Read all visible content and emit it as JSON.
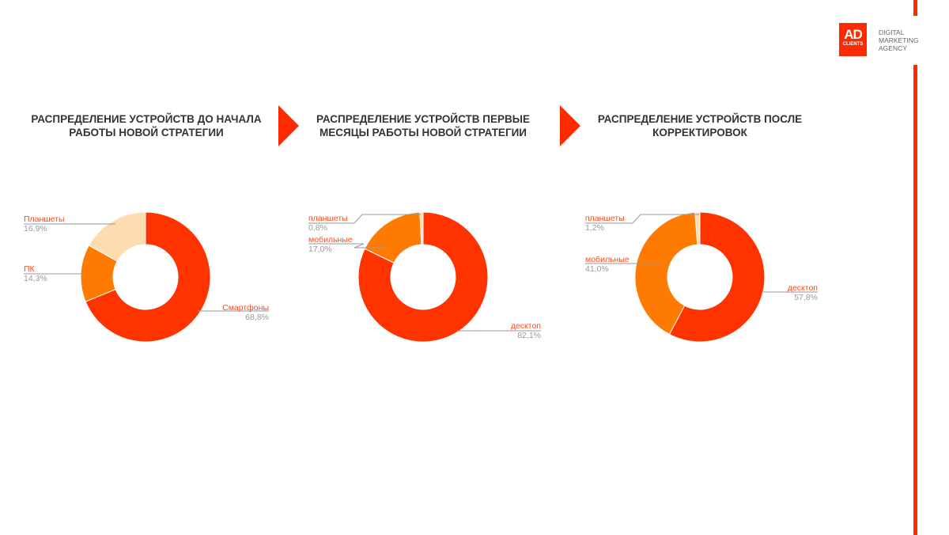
{
  "logo": {
    "mark_top": "AD",
    "mark_bottom": "CLIENTS",
    "text_lines": [
      "DIGITAL",
      "MARKETING",
      "AGENCY"
    ]
  },
  "colors": {
    "accent": "#ff2a00",
    "primary_slice": "#ff3300",
    "secondary_slice": "#ff7a00",
    "tertiary_slice": "#fddcb0"
  },
  "chart_data": [
    {
      "type": "pie",
      "donut": true,
      "title": "РАСПРЕДЕЛЕНИЕ УСТРОЙСТВ ДО НАЧАЛА РАБОТЫ НОВОЙ СТРАТЕГИИ",
      "slices": [
        {
          "label": "Смартфоны",
          "value": 68.8,
          "display": "68,8%",
          "color": "#ff3300"
        },
        {
          "label": "ПК",
          "value": 14.3,
          "display": "14,3%",
          "color": "#ff7a00"
        },
        {
          "label": "Планшеты",
          "value": 16.9,
          "display": "16,9%",
          "color": "#fddcb0"
        }
      ]
    },
    {
      "type": "pie",
      "donut": true,
      "title": "РАСПРЕДЕЛЕНИЕ УСТРОЙСТВ ПЕРВЫЕ МЕСЯЦЫ РАБОТЫ НОВОЙ СТРАТЕГИИ",
      "slices": [
        {
          "label": "десктоп",
          "value": 82.1,
          "display": "82,1%",
          "color": "#ff3300"
        },
        {
          "label": "мобильные",
          "value": 17.0,
          "display": "17,0%",
          "color": "#ff7a00"
        },
        {
          "label": "планшеты",
          "value": 0.8,
          "display": "0,8%",
          "color": "#fddcb0"
        }
      ]
    },
    {
      "type": "pie",
      "donut": true,
      "title": "РАСПРЕДЕЛЕНИЕ УСТРОЙСТВ ПОСЛЕ КОРРЕКТИРОВОК",
      "slices": [
        {
          "label": "десктоп",
          "value": 57.8,
          "display": "57,8%",
          "color": "#ff3300"
        },
        {
          "label": "мобильные",
          "value": 41.0,
          "display": "41,0%",
          "color": "#ff7a00"
        },
        {
          "label": "планшеты",
          "value": 1.2,
          "display": "1,2%",
          "color": "#fddcb0"
        }
      ]
    }
  ]
}
